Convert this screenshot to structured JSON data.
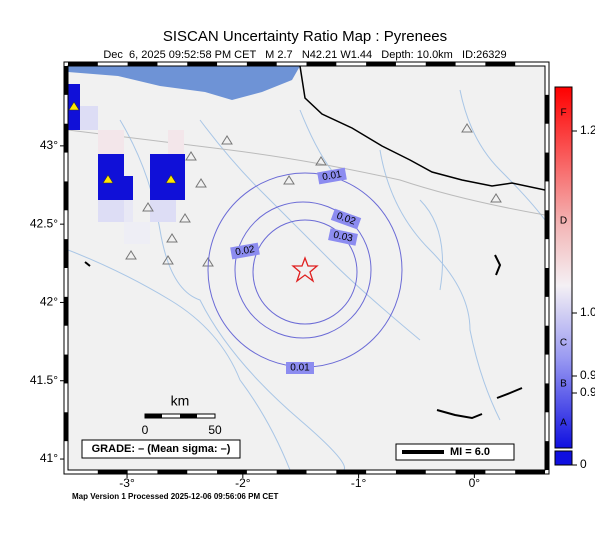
{
  "title": "SISCAN Uncertainty Ratio Map : Pyrenees",
  "subtitle": "Dec  6, 2025 09:52:58 PM CET   M 2.7   N42.21 W1.44   Depth: 10.0km   ID:26329",
  "map": {
    "xlim": [
      -3.51,
      0.61
    ],
    "ylim": [
      40.93,
      43.51
    ],
    "xticks": [
      {
        "value": -3,
        "label": "-3°"
      },
      {
        "value": -2,
        "label": "-2°"
      },
      {
        "value": -1,
        "label": "-1°"
      },
      {
        "value": 0,
        "label": "0°"
      }
    ],
    "yticks": [
      {
        "value": 41,
        "label": "41°"
      },
      {
        "value": 41.5,
        "label": "41.5°"
      },
      {
        "value": 42,
        "label": "42°"
      },
      {
        "value": 42.5,
        "label": "42.5°"
      },
      {
        "value": 43,
        "label": "43°"
      }
    ]
  },
  "contour_labels": [
    0.01,
    0.02,
    0.03,
    0.02,
    0.01
  ],
  "scale_bar": {
    "title": "km",
    "labels": [
      0,
      50
    ]
  },
  "grade_text": "GRADE: – (Mean sigma: –)",
  "mi_text": "MI = 6.0",
  "footer": "Map Version 1 Processed 2025-12-06 09:56:06 PM CET",
  "colorbar": {
    "grades": [
      "F",
      "D",
      "C",
      "B",
      "A"
    ],
    "labels": [
      1.2,
      {
        "value": 1,
        "label": "1.0"
      },
      0.9,
      0.9,
      0
    ]
  }
}
